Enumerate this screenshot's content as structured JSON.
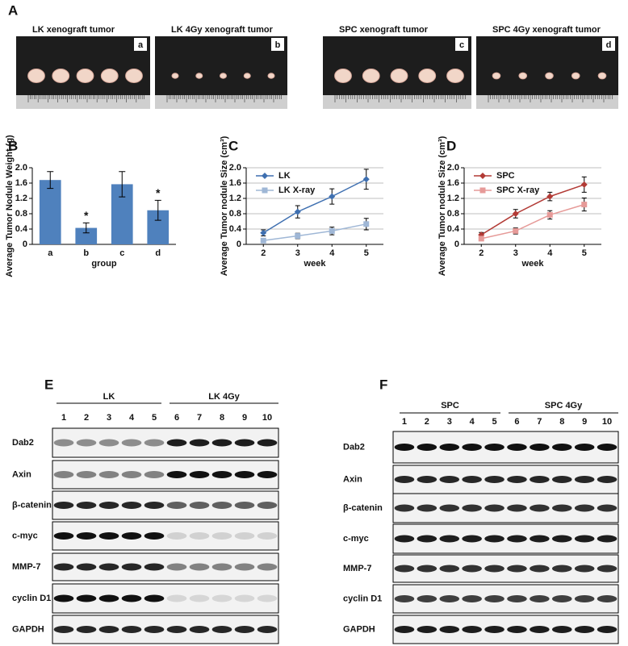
{
  "panel_labels": [
    "A",
    "B",
    "C",
    "D",
    "E",
    "F"
  ],
  "photos": [
    {
      "title": "LK xenograft tumor",
      "letter": "a"
    },
    {
      "title": "LK 4Gy xenograft tumor",
      "letter": "b"
    },
    {
      "title": "SPC xenograft tumor",
      "letter": "c"
    },
    {
      "title": "SPC 4Gy xenograft tumor",
      "letter": "d"
    }
  ],
  "chart_data": [
    {
      "type": "bar",
      "categories": [
        "a",
        "b",
        "c",
        "d"
      ],
      "values": [
        1.68,
        0.43,
        1.57,
        0.89
      ],
      "errors": [
        0.22,
        0.13,
        0.33,
        0.26
      ],
      "annotations": [
        {
          "x": "b",
          "text": "*"
        },
        {
          "x": "d",
          "text": "*"
        }
      ],
      "color": "#4f81bd",
      "ylabel": "Average Tumor Nodule Weight (g)",
      "xlabel": "group",
      "ylim": [
        0,
        2
      ],
      "yticks": [
        0,
        0.4,
        0.8,
        1.2,
        1.6,
        {
          "value": 2,
          "label": "2.0"
        }
      ],
      "grid": false
    },
    {
      "type": "line",
      "x": [
        2,
        3,
        4,
        5
      ],
      "xlim": [
        1.5,
        5.5
      ],
      "xticks": [
        2,
        3,
        4,
        5
      ],
      "ylim": [
        0,
        2
      ],
      "yticks": [
        0,
        0.4,
        0.8,
        1.2,
        1.6,
        {
          "value": 2,
          "label": "2.0"
        }
      ],
      "grid": true,
      "legend": "upper left",
      "ylabel": "Average Tumor nodule Size (cm³)",
      "xlabel": "week",
      "series": [
        {
          "name": "LK",
          "color": "#3e6fb0",
          "marker": "diamond",
          "values": [
            0.3,
            0.85,
            1.25,
            1.7
          ],
          "errors": [
            0.08,
            0.16,
            0.2,
            0.26
          ]
        },
        {
          "name": "LK X-ray",
          "color": "#9fb7d6",
          "marker": "square",
          "values": [
            0.1,
            0.22,
            0.35,
            0.53
          ],
          "errors": [
            0.05,
            0.07,
            0.1,
            0.15
          ]
        }
      ]
    },
    {
      "type": "line",
      "x": [
        2,
        3,
        4,
        5
      ],
      "xlim": [
        1.5,
        5.5
      ],
      "xticks": [
        2,
        3,
        4,
        5
      ],
      "ylim": [
        0,
        2
      ],
      "yticks": [
        0,
        0.4,
        0.8,
        1.2,
        1.6,
        {
          "value": 2,
          "label": "2.0"
        }
      ],
      "grid": true,
      "legend": "upper left",
      "ylabel": "Average Tumor nodule Size (cm³)",
      "xlabel": "week",
      "series": [
        {
          "name": "SPC",
          "color": "#b23a35",
          "marker": "diamond",
          "values": [
            0.25,
            0.8,
            1.25,
            1.56
          ],
          "errors": [
            0.06,
            0.11,
            0.11,
            0.2
          ]
        },
        {
          "name": "SPC X-ray",
          "color": "#e69a98",
          "marker": "square",
          "values": [
            0.15,
            0.35,
            0.77,
            1.04
          ],
          "errors": [
            0.05,
            0.08,
            0.11,
            0.17
          ]
        }
      ]
    }
  ],
  "blots": [
    {
      "groups": [
        "LK",
        "LK 4Gy"
      ],
      "lanes": [
        1,
        2,
        3,
        4,
        5,
        6,
        7,
        8,
        9,
        10
      ],
      "rows": [
        "Dab2",
        "Axin",
        "β-catenin",
        "c-myc",
        "MMP-7",
        "cyclin D1",
        "GAPDH"
      ]
    },
    {
      "groups": [
        "SPC",
        "SPC 4Gy"
      ],
      "lanes": [
        1,
        2,
        3,
        4,
        5,
        6,
        7,
        8,
        9,
        10
      ],
      "rows": [
        "Dab2",
        "Axin",
        "β-catenin",
        "c-myc",
        "MMP-7",
        "cyclin D1",
        "GAPDH"
      ]
    }
  ]
}
